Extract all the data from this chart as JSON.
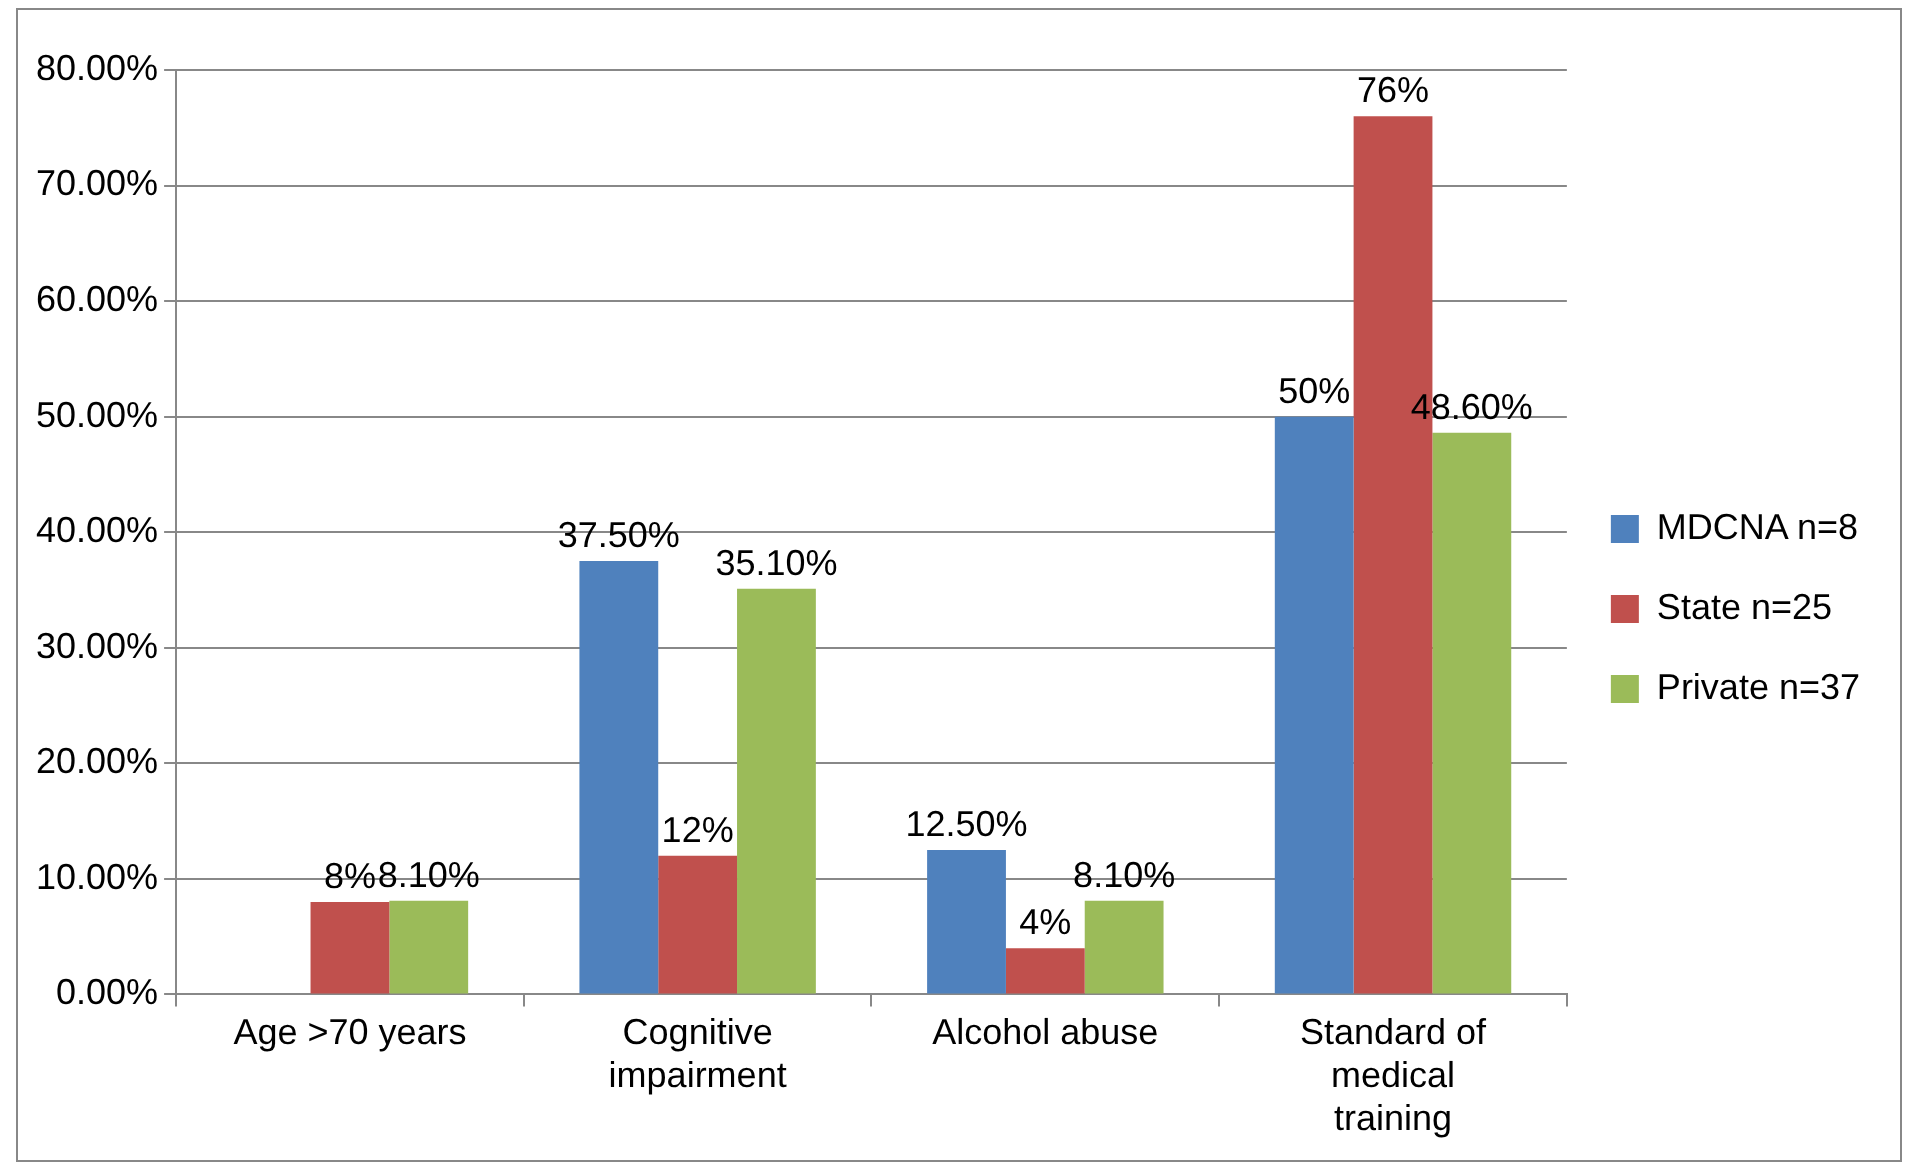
{
  "chart_data": {
    "type": "bar",
    "categories": [
      "Age >70 years",
      "Cognitive impairment",
      "Alcohol abuse",
      "Standard of medical training"
    ],
    "series": [
      {
        "name": "MDCNA n=8",
        "color": "#4f81bd",
        "values": [
          0,
          37.5,
          12.5,
          50
        ],
        "value_labels": [
          null,
          "37.50%",
          "12.50%",
          "50%"
        ]
      },
      {
        "name": "State n=25",
        "color": "#c0504d",
        "values": [
          8,
          12,
          4,
          76
        ],
        "value_labels": [
          "8%",
          "12%",
          "4%",
          "76%"
        ]
      },
      {
        "name": "Private n=37",
        "color": "#9bbb59",
        "values": [
          8.1,
          35.1,
          8.1,
          48.6
        ],
        "value_labels": [
          "8.10%",
          "35.10%",
          "8.10%",
          "48.60%"
        ]
      }
    ],
    "ylim": [
      0,
      80
    ],
    "yticks": [
      {
        "value": 0,
        "label": "0.00%"
      },
      {
        "value": 10,
        "label": "10.00%"
      },
      {
        "value": 20,
        "label": "20.00%"
      },
      {
        "value": 30,
        "label": "30.00%"
      },
      {
        "value": 40,
        "label": "40.00%"
      },
      {
        "value": 50,
        "label": "50.00%"
      },
      {
        "value": 60,
        "label": "60.00%"
      },
      {
        "value": 70,
        "label": "70.00%"
      },
      {
        "value": 80,
        "label": "80.00%"
      }
    ],
    "grid": "y",
    "legend": "right"
  }
}
